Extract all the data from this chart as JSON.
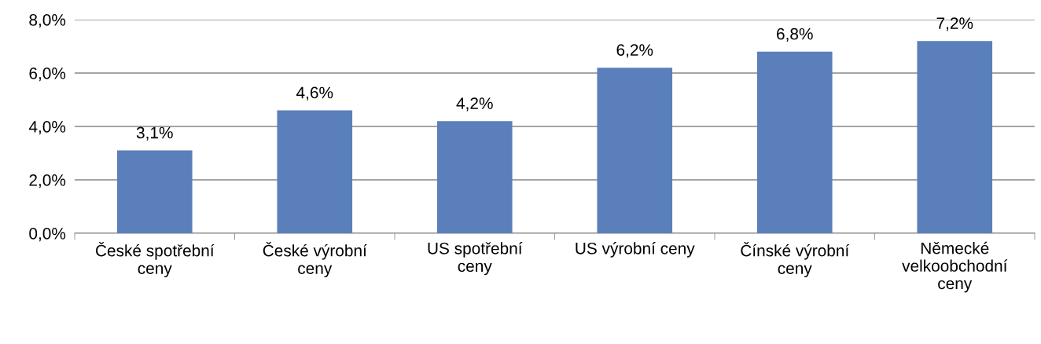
{
  "chart_data": {
    "type": "bar",
    "categories": [
      "České spotřební ceny",
      "České výrobní ceny",
      "US spotřební ceny",
      "US výrobní ceny",
      "Čínské výrobní ceny",
      "Německé velkoobchodní ceny"
    ],
    "values": [
      3.1,
      4.6,
      4.2,
      6.2,
      6.8,
      7.2
    ],
    "value_labels": [
      "3,1%",
      "4,6%",
      "4,2%",
      "6,2%",
      "6,8%",
      "7,2%"
    ],
    "color": "#5a7fba",
    "ylim": [
      0,
      8
    ],
    "yticks": [
      {
        "value": 0,
        "label": "0,0%"
      },
      {
        "value": 2,
        "label": "2,0%"
      },
      {
        "value": 4,
        "label": "4,0%"
      },
      {
        "value": 6,
        "label": "6,0%"
      },
      {
        "value": 8,
        "label": "8,0%"
      }
    ],
    "grid": "y"
  }
}
